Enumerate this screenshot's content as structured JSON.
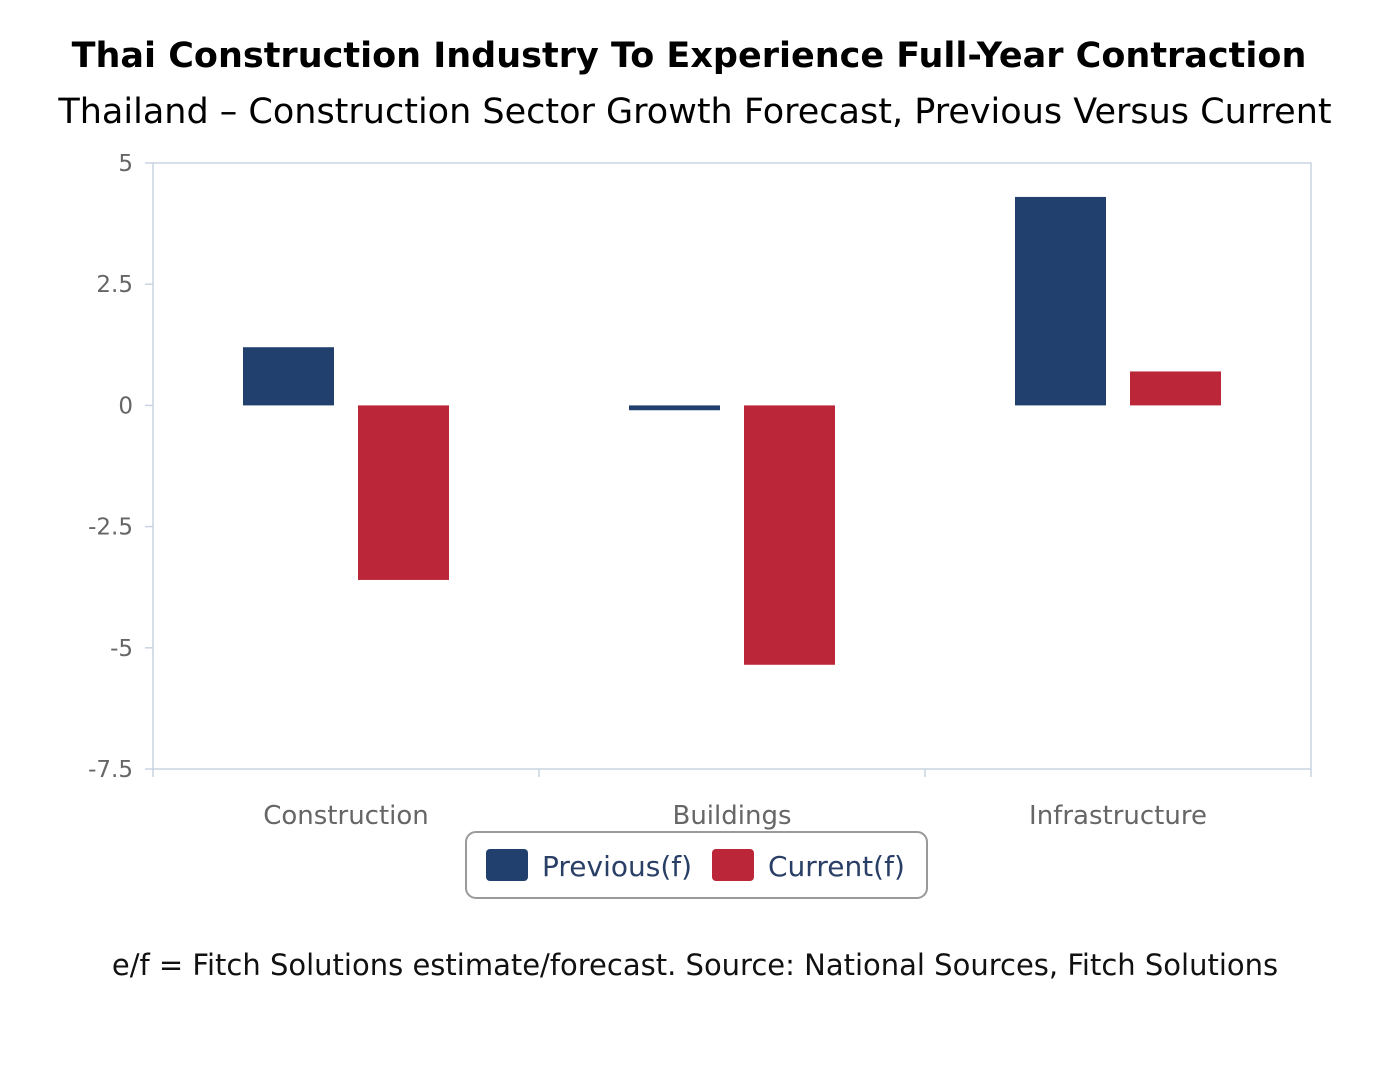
{
  "chart_data": {
    "type": "bar",
    "title": "Thai Construction Industry To Experience Full-Year Contraction",
    "subtitle": "Thailand – Construction Sector Growth Forecast, Previous Versus Current",
    "categories": [
      "Construction",
      "Buildings",
      "Infrastructure"
    ],
    "series": [
      {
        "name": "Previous(f)",
        "color": "#21406e",
        "values": [
          1.2,
          -0.1,
          4.3
        ]
      },
      {
        "name": "Current(f)",
        "color": "#bb2639",
        "values": [
          -3.6,
          -5.35,
          0.7
        ]
      }
    ],
    "ylim": [
      -7.5,
      5
    ],
    "yticks": [
      5,
      2.5,
      0,
      -2.5,
      -5,
      -7.5
    ],
    "ytick_labels": [
      "5",
      "2.5",
      "0",
      "-2.5",
      "-5",
      "-7.5"
    ],
    "legend_position": "bottom-center",
    "grid": false,
    "caption": "e/f = Fitch Solutions estimate/forecast. Source: National Sources, Fitch Solutions"
  }
}
